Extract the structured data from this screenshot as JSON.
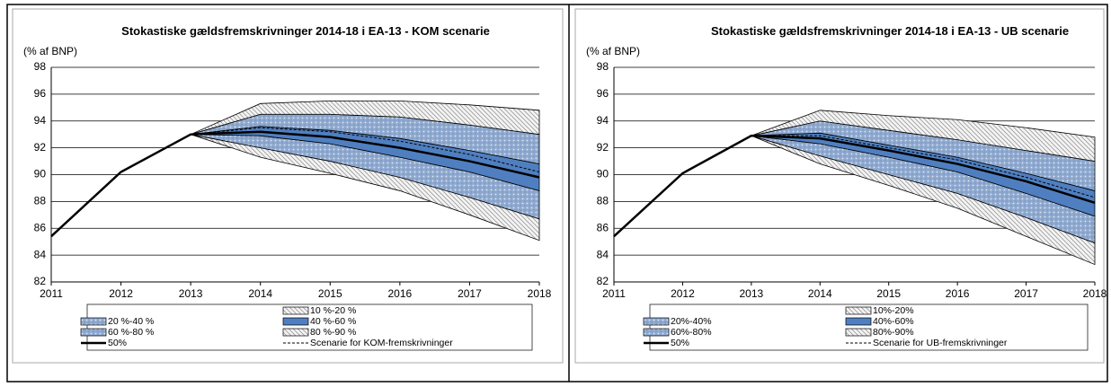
{
  "chart_data": [
    {
      "type": "fan",
      "title": "Stokastiske gældsfremskrivninger 2014-18 i EA-13 - KOM scenarie",
      "y_label": "(% af BNP)",
      "x": [
        2011,
        2012,
        2013,
        2014,
        2015,
        2016,
        2017,
        2018
      ],
      "xlim": [
        2011,
        2018
      ],
      "xticks": [
        2011,
        2012,
        2013,
        2014,
        2015,
        2016,
        2017,
        2018
      ],
      "ylim": [
        82,
        98
      ],
      "yticks": [
        82,
        84,
        86,
        88,
        90,
        92,
        94,
        96,
        98
      ],
      "grid": true,
      "bands": [
        {
          "name": "10 %-20 %",
          "color": "#9a9a9a",
          "pattern": "hatch",
          "lower": [
            null,
            null,
            93.0,
            91.3,
            90.1,
            88.8,
            87.0,
            85.1
          ],
          "upper": [
            null,
            null,
            93.0,
            92.0,
            91.0,
            89.8,
            88.3,
            86.7
          ]
        },
        {
          "name": "20 %-40 %",
          "color": "#8fa9cf",
          "pattern": "dots",
          "lower": [
            null,
            null,
            93.0,
            92.0,
            91.0,
            89.8,
            88.3,
            86.7
          ],
          "upper": [
            null,
            null,
            93.0,
            92.9,
            92.3,
            91.3,
            90.2,
            88.8
          ]
        },
        {
          "name": "40 %-60 %",
          "color": "#4f7fc0",
          "pattern": "solid",
          "lower": [
            null,
            null,
            93.0,
            92.9,
            92.3,
            91.3,
            90.2,
            88.8
          ],
          "upper": [
            null,
            null,
            93.0,
            93.6,
            93.3,
            92.7,
            91.8,
            90.8
          ]
        },
        {
          "name": "60 %-80 %",
          "color": "#8fa9cf",
          "pattern": "dots",
          "lower": [
            null,
            null,
            93.0,
            93.6,
            93.3,
            92.7,
            91.8,
            90.8
          ],
          "upper": [
            null,
            null,
            93.0,
            94.5,
            94.5,
            94.3,
            93.7,
            93.0
          ]
        },
        {
          "name": "80 %-90 %",
          "color": "#9a9a9a",
          "pattern": "hatch",
          "lower": [
            null,
            null,
            93.0,
            94.5,
            94.5,
            94.3,
            93.7,
            93.0
          ],
          "upper": [
            null,
            null,
            93.0,
            95.3,
            95.5,
            95.5,
            95.2,
            94.8
          ]
        }
      ],
      "series": [
        {
          "name": "50%",
          "color": "#000000",
          "style": "solid",
          "values": [
            85.4,
            90.2,
            93.0,
            93.2,
            92.8,
            92.0,
            91.0,
            89.8
          ]
        },
        {
          "name": "Scenarie for KOM-fremskrivninger",
          "color": "#000000",
          "style": "dashed",
          "values": [
            null,
            null,
            93.0,
            93.5,
            93.2,
            92.5,
            91.5,
            90.2
          ]
        }
      ]
    },
    {
      "type": "fan",
      "title": "Stokastiske gældsfremskrivninger 2014-18 i EA-13 - UB scenarie",
      "y_label": "(% af BNP)",
      "x": [
        2011,
        2012,
        2013,
        2014,
        2015,
        2016,
        2017,
        2018
      ],
      "xlim": [
        2011,
        2018
      ],
      "xticks": [
        2011,
        2012,
        2013,
        2014,
        2015,
        2016,
        2017,
        2018
      ],
      "ylim": [
        82,
        98
      ],
      "yticks": [
        82,
        84,
        86,
        88,
        90,
        92,
        94,
        96,
        98
      ],
      "grid": true,
      "bands": [
        {
          "name": "10%-20%",
          "color": "#9a9a9a",
          "pattern": "hatch",
          "lower": [
            null,
            null,
            92.9,
            90.8,
            89.2,
            87.5,
            85.4,
            83.3
          ],
          "upper": [
            null,
            null,
            92.9,
            91.4,
            90.0,
            88.6,
            86.8,
            84.9
          ]
        },
        {
          "name": "20%-40%",
          "color": "#8fa9cf",
          "pattern": "dots",
          "lower": [
            null,
            null,
            92.9,
            91.4,
            90.0,
            88.6,
            86.8,
            84.9
          ],
          "upper": [
            null,
            null,
            92.9,
            92.3,
            91.3,
            90.2,
            88.6,
            86.9
          ]
        },
        {
          "name": "40%-60%",
          "color": "#4f7fc0",
          "pattern": "solid",
          "lower": [
            null,
            null,
            92.9,
            92.3,
            91.3,
            90.2,
            88.6,
            86.9
          ],
          "upper": [
            null,
            null,
            92.9,
            93.1,
            92.2,
            91.3,
            90.1,
            88.8
          ]
        },
        {
          "name": "60%-80%",
          "color": "#8fa9cf",
          "pattern": "dots",
          "lower": [
            null,
            null,
            92.9,
            93.1,
            92.2,
            91.3,
            90.1,
            88.8
          ],
          "upper": [
            null,
            null,
            92.9,
            94.0,
            93.3,
            92.6,
            91.8,
            91.0
          ]
        },
        {
          "name": "80%-90%",
          "color": "#9a9a9a",
          "pattern": "hatch",
          "lower": [
            null,
            null,
            92.9,
            94.0,
            93.3,
            92.6,
            91.8,
            91.0
          ],
          "upper": [
            null,
            null,
            92.9,
            94.8,
            94.4,
            94.1,
            93.5,
            92.8
          ]
        }
      ],
      "series": [
        {
          "name": "50%",
          "color": "#000000",
          "style": "solid",
          "values": [
            85.4,
            90.1,
            92.9,
            92.7,
            91.8,
            90.8,
            89.5,
            87.9
          ]
        },
        {
          "name": "Scenarie for UB-fremskrivninger",
          "color": "#000000",
          "style": "dashed",
          "values": [
            null,
            null,
            92.9,
            92.9,
            92.0,
            91.1,
            89.8,
            88.3
          ]
        }
      ]
    }
  ]
}
